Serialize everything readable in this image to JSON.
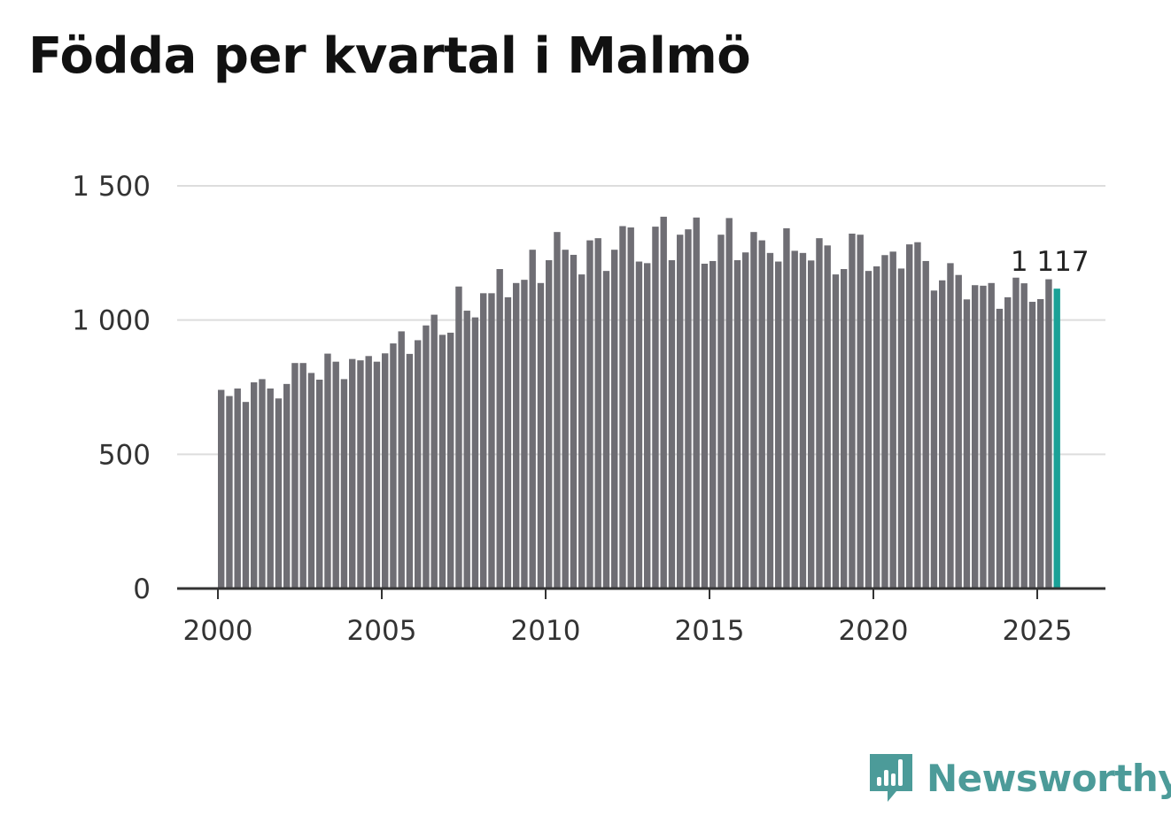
{
  "title": "Födda per kvartal i Malmö",
  "brand": {
    "name": "Newsworthy",
    "icon": "newsworthy-logo-icon",
    "color": "#4c9b99"
  },
  "chart_data": {
    "type": "bar",
    "title": "Födda per kvartal i Malmö",
    "xlabel": "",
    "ylabel": "",
    "ylim": [
      0,
      1500
    ],
    "yticks": [
      0,
      500,
      1000,
      1500
    ],
    "ytick_labels": [
      "0",
      "500",
      "1 000",
      "1 500"
    ],
    "xticks": [
      2000,
      2005,
      2010,
      2015,
      2020,
      2025
    ],
    "xtick_labels": [
      "2000",
      "2005",
      "2010",
      "2015",
      "2020",
      "2025"
    ],
    "x_start": 2000,
    "x_step": 0.25,
    "grid": true,
    "bar_color": "#6f6e74",
    "highlight_color": "#1aa197",
    "highlight_last": true,
    "last_value_label": "1 117",
    "values": [
      740,
      717,
      745,
      695,
      768,
      780,
      745,
      708,
      762,
      840,
      840,
      803,
      778,
      875,
      845,
      780,
      855,
      850,
      866,
      845,
      876,
      913,
      958,
      874,
      925,
      980,
      1020,
      945,
      953,
      1125,
      1035,
      1010,
      1100,
      1100,
      1190,
      1085,
      1138,
      1150,
      1262,
      1138,
      1223,
      1328,
      1262,
      1243,
      1170,
      1297,
      1305,
      1183,
      1262,
      1350,
      1345,
      1218,
      1212,
      1348,
      1385,
      1223,
      1318,
      1338,
      1382,
      1210,
      1220,
      1318,
      1380,
      1223,
      1252,
      1328,
      1297,
      1250,
      1218,
      1342,
      1258,
      1250,
      1222,
      1305,
      1278,
      1170,
      1190,
      1322,
      1318,
      1183,
      1200,
      1242,
      1255,
      1192,
      1282,
      1290,
      1220,
      1110,
      1148,
      1212,
      1168,
      1077,
      1130,
      1128,
      1138,
      1042,
      1085,
      1158,
      1137,
      1068,
      1078,
      1152,
      1117
    ]
  }
}
